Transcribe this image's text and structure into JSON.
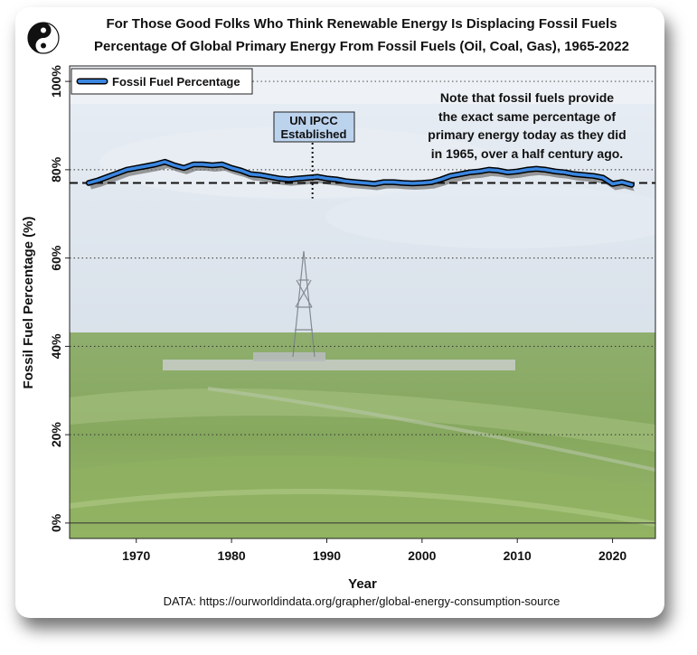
{
  "chart_data": {
    "type": "line",
    "title": "For Those Good Folks Who Think Renewable Energy Is Displacing Fossil Fuels",
    "subtitle": "Percentage Of Global Primary Energy From Fossil Fuels (Oil, Coal, Gas), 1965-2022",
    "xlabel": "Year",
    "ylabel": "Fossil Fuel Percentage (%)",
    "xlim": [
      1963,
      2024.5
    ],
    "ylim": [
      -3.5,
      103.5
    ],
    "x_ticks": [
      1970,
      1980,
      1990,
      2000,
      2010,
      2020
    ],
    "y_ticks": [
      0,
      20,
      40,
      60,
      80,
      100
    ],
    "y_tick_labels": [
      "0%",
      "20%",
      "40%",
      "60%",
      "80%",
      "100%"
    ],
    "grid": "horizontal dotted",
    "legend": {
      "position": "top-left",
      "entries": [
        "Fossil Fuel Percentage"
      ]
    },
    "series": [
      {
        "name": "Fossil Fuel Percentage",
        "color": "#3a86e0",
        "x": [
          1965,
          1966,
          1967,
          1968,
          1969,
          1970,
          1971,
          1972,
          1973,
          1974,
          1975,
          1976,
          1977,
          1978,
          1979,
          1980,
          1981,
          1982,
          1983,
          1984,
          1985,
          1986,
          1987,
          1988,
          1989,
          1990,
          1991,
          1992,
          1993,
          1994,
          1995,
          1996,
          1997,
          1998,
          1999,
          2000,
          2001,
          2002,
          2003,
          2004,
          2005,
          2006,
          2007,
          2008,
          2009,
          2010,
          2011,
          2012,
          2013,
          2014,
          2015,
          2016,
          2017,
          2018,
          2019,
          2020,
          2021,
          2022
        ],
        "y": [
          77.0,
          77.6,
          78.4,
          79.2,
          80.0,
          80.4,
          80.8,
          81.2,
          81.8,
          81.0,
          80.4,
          81.2,
          81.2,
          81.0,
          81.2,
          80.4,
          79.8,
          79.0,
          78.8,
          78.4,
          78.0,
          77.8,
          78.0,
          78.2,
          78.4,
          78.0,
          77.8,
          77.4,
          77.2,
          77.0,
          76.8,
          77.2,
          77.2,
          77.0,
          76.9,
          77.0,
          77.2,
          77.8,
          78.6,
          79.0,
          79.4,
          79.6,
          80.0,
          79.8,
          79.4,
          79.6,
          80.0,
          80.2,
          80.0,
          79.6,
          79.4,
          79.0,
          78.8,
          78.6,
          78.2,
          76.8,
          77.2,
          76.6
        ]
      }
    ],
    "reference_line": {
      "y": 77.0,
      "style": "dashed"
    },
    "annotations": [
      {
        "type": "vline",
        "x": 1988.5,
        "label_lines": [
          "UN IPCC",
          "Established"
        ]
      },
      {
        "type": "note",
        "lines": [
          "Note that fossil fuels provide",
          "the exact same percentage of",
          "primary energy today as they did",
          "in 1965, over a half century ago."
        ]
      }
    ],
    "source": "DATA: https://ourworldindata.org/grapher/global-energy-consumption-source",
    "colors": {
      "line": "#3a86e0",
      "shadow": "#7a7a7a",
      "ipcc_box": "#bcd3ee",
      "sky": "#dde5ee",
      "field": "#7ea25a"
    }
  }
}
